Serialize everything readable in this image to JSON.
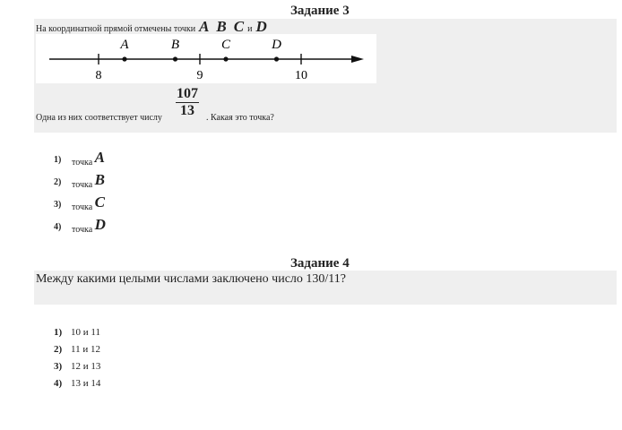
{
  "task3": {
    "title": "Задание 3",
    "intro": "На координатной прямой отмечены точки",
    "points": [
      "A",
      "B",
      "C"
    ],
    "and": "и",
    "last_point": "D",
    "number_line": {
      "ticks": [
        "8",
        "9",
        "10"
      ],
      "point_labels": [
        "A",
        "B",
        "C",
        "D"
      ]
    },
    "question_before": "Одна из них соответствует числу",
    "fraction": {
      "numerator": "107",
      "denominator": "13"
    },
    "question_after": ". Какая это точка?",
    "options": [
      {
        "num": "1)",
        "text": "точка",
        "letter": "A"
      },
      {
        "num": "2)",
        "text": "точка",
        "letter": "B"
      },
      {
        "num": "3)",
        "text": "точка",
        "letter": "C"
      },
      {
        "num": "4)",
        "text": "точка",
        "letter": "D"
      }
    ]
  },
  "task4": {
    "title": "Задание 4",
    "question": "Между какими целыми числами заключено число 130/11?",
    "options": [
      {
        "num": "1)",
        "text": "10 и 11"
      },
      {
        "num": "2)",
        "text": "11 и 12"
      },
      {
        "num": "3)",
        "text": "12 и 13"
      },
      {
        "num": "4)",
        "text": "13 и 14"
      }
    ]
  }
}
